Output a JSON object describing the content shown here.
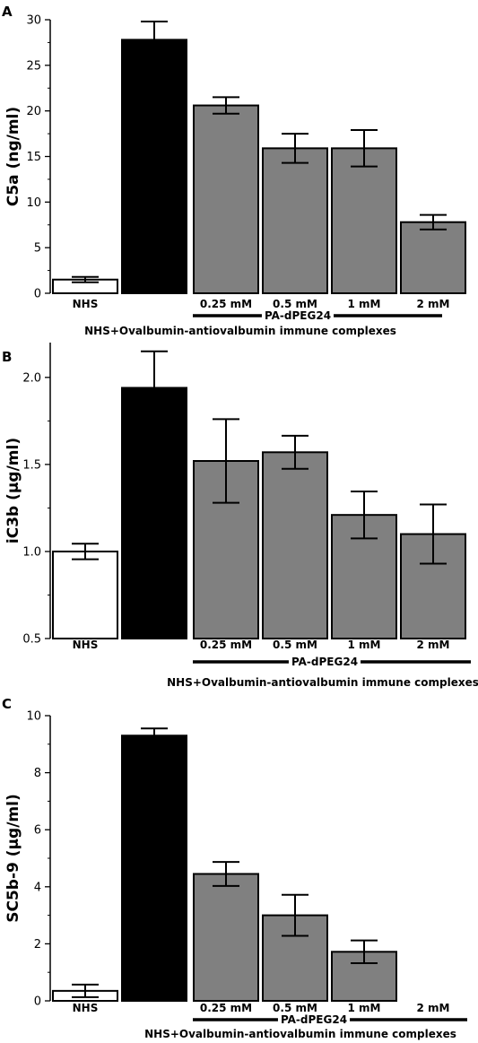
{
  "chart_data": [
    {
      "panel": "A",
      "type": "bar",
      "ylabel": "C5a (ng/ml)",
      "ylim": [
        0,
        30
      ],
      "yticks": [
        "0",
        "5",
        "10",
        "15",
        "20",
        "25",
        "30"
      ],
      "categories": [
        "NHS",
        "",
        "0.25 mM",
        "0.5 mM",
        "1 mM",
        "2 mM"
      ],
      "values": [
        1.5,
        27.8,
        20.6,
        15.9,
        15.9,
        7.8
      ],
      "errors": [
        0.3,
        2.0,
        0.9,
        1.6,
        2.0,
        0.8
      ],
      "colors": [
        "#ffffff",
        "#000000",
        "#808080",
        "#808080",
        "#808080",
        "#808080"
      ],
      "group_label": "PA-dPEG24",
      "bottom_label": "NHS+Ovalbumin-antiovalbumin immune complexes"
    },
    {
      "panel": "B",
      "type": "bar",
      "ylabel": "iC3b (µg/ml)",
      "ylim": [
        0.5,
        2.2
      ],
      "yticks": [
        "0.5",
        "1.0",
        "1.5",
        "2.0"
      ],
      "categories": [
        "NHS",
        "",
        "0.25 mM",
        "0.5 mM",
        "1 mM",
        "2 mM"
      ],
      "values": [
        1.0,
        1.94,
        1.52,
        1.57,
        1.21,
        1.1
      ],
      "errors": [
        0.045,
        0.21,
        0.24,
        0.095,
        0.135,
        0.17
      ],
      "colors": [
        "#ffffff",
        "#000000",
        "#808080",
        "#808080",
        "#808080",
        "#808080"
      ],
      "group_label": "PA-dPEG24",
      "bottom_label": "NHS+Ovalbumin-antiovalbumin immune complexes"
    },
    {
      "panel": "C",
      "type": "bar",
      "ylabel": "SC5b-9 (µg/ml)",
      "ylim": [
        0,
        10
      ],
      "yticks": [
        "0",
        "2",
        "4",
        "6",
        "8",
        "10"
      ],
      "categories": [
        "NHS",
        "",
        "0.25 mM",
        "0.5 mM",
        "1 mM",
        "2 mM"
      ],
      "values": [
        0.35,
        9.3,
        4.45,
        3.0,
        1.72,
        0
      ],
      "errors": [
        0.22,
        0.25,
        0.42,
        0.72,
        0.4,
        0
      ],
      "colors": [
        "#ffffff",
        "#000000",
        "#808080",
        "#808080",
        "#808080",
        "#808080"
      ],
      "group_label": "PA-dPEG24",
      "bottom_label": "NHS+Ovalbumin-antiovalbumin immune complexes"
    }
  ]
}
